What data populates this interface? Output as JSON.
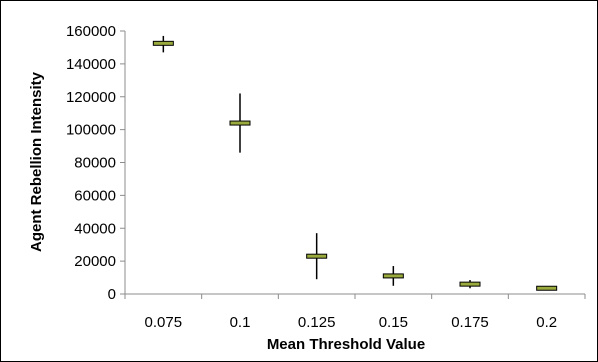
{
  "chart_data": {
    "type": "scatter",
    "title": "",
    "xlabel": "Mean Threshold Value",
    "ylabel": "Agent Rebellion Intensity",
    "categories": [
      "0.075",
      "0.1",
      "0.125",
      "0.15",
      "0.175",
      "0.2"
    ],
    "series": [
      {
        "values": [
          152500,
          104000,
          23000,
          11000,
          6000,
          3500
        ],
        "low": [
          147000,
          86000,
          9000,
          5000,
          3500,
          2500
        ],
        "high": [
          157000,
          122000,
          37000,
          17000,
          8500,
          4500
        ]
      }
    ],
    "ylim": [
      0,
      160000
    ],
    "yticks": [
      "0",
      "20000",
      "40000",
      "60000",
      "80000",
      "100000",
      "120000",
      "140000",
      "160000"
    ],
    "grid": false,
    "legend": "none",
    "colors": {
      "marker": "#9aaa3c",
      "marker_edge": "#000000",
      "error_bar": "#000000",
      "axis": "#8c8c8c"
    }
  }
}
